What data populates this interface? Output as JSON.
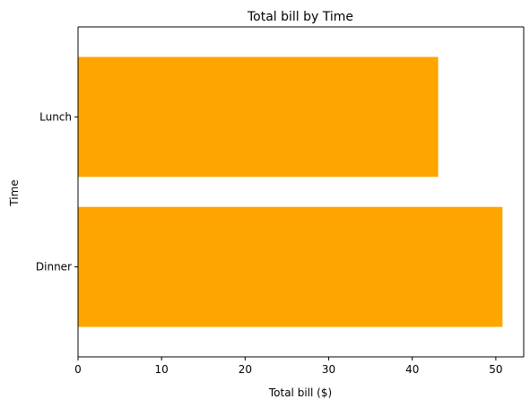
{
  "chart_data": {
    "type": "bar",
    "orientation": "horizontal",
    "title": "Total bill by Time",
    "xlabel": "Total bill ($)",
    "ylabel": "Time",
    "categories": [
      "Dinner",
      "Lunch"
    ],
    "values": [
      50.8,
      43.1
    ],
    "xlim": [
      0,
      53.34
    ],
    "xticks": [
      0,
      10,
      20,
      30,
      40,
      50
    ],
    "xtick_labels": [
      "0",
      "10",
      "20",
      "30",
      "40",
      "50"
    ],
    "bar_color": "#ffa500",
    "grid": false,
    "legend": "none"
  }
}
